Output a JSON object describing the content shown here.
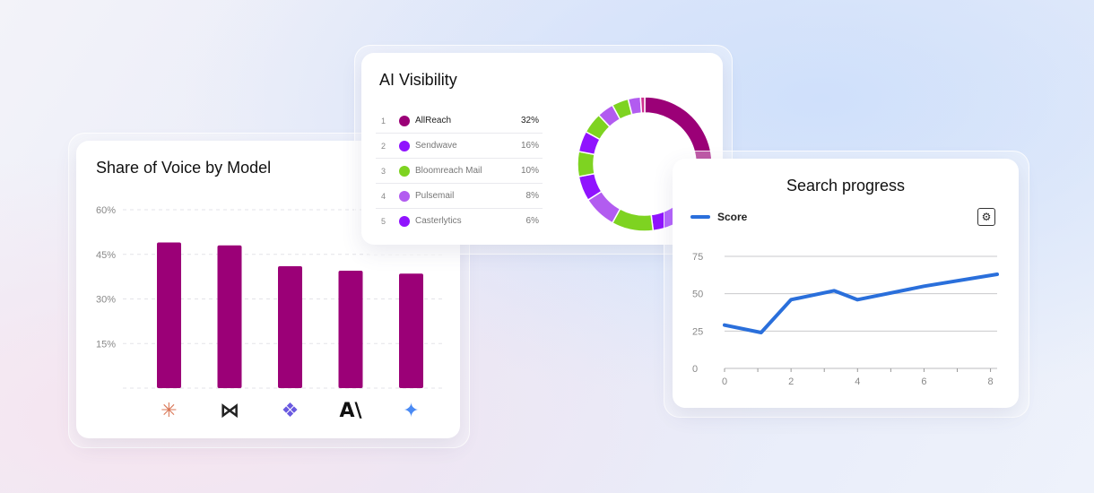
{
  "colors": {
    "bar": "#9b0077",
    "score_line": "#2a6fdb"
  },
  "share_of_voice": {
    "title": "Share of Voice by Model",
    "models": [
      {
        "icon": "claude-icon",
        "glyph": "✳",
        "color": "#d97757"
      },
      {
        "icon": "perplexity-icon",
        "glyph": "⋈",
        "color": "#222222"
      },
      {
        "icon": "copilot-icon",
        "glyph": "❖",
        "color": "#6a5ae0"
      },
      {
        "icon": "anthropic-icon",
        "glyph": "A\\",
        "color": "#111111"
      },
      {
        "icon": "gemini-icon",
        "glyph": "✦",
        "color": "#4a8af4"
      }
    ]
  },
  "ai_visibility": {
    "title": "AI Visibility",
    "items": [
      {
        "rank": "1",
        "name": "AllReach",
        "pct": "32%",
        "color": "#9b0077"
      },
      {
        "rank": "2",
        "name": "Sendwave",
        "pct": "16%",
        "color": "#9013fe"
      },
      {
        "rank": "3",
        "name": "Bloomreach Mail",
        "pct": "10%",
        "color": "#7ed321"
      },
      {
        "rank": "4",
        "name": "Pulsemail",
        "pct": "8%",
        "color": "#b25cf0"
      },
      {
        "rank": "5",
        "name": "Casterlytics",
        "pct": "6%",
        "color": "#9013fe"
      }
    ]
  },
  "search_progress": {
    "title": "Search progress",
    "legend": "Score",
    "settings_icon": "gear-icon"
  },
  "chart_data": [
    {
      "type": "bar",
      "categories": [
        "claude-icon",
        "perplexity-icon",
        "copilot-icon",
        "anthropic-icon",
        "gemini-icon"
      ],
      "values": [
        49,
        48,
        41,
        39.5,
        38.5
      ],
      "title": "Share of Voice by Model",
      "xlabel": "",
      "ylabel": "",
      "yticks": [
        "15%",
        "30%",
        "45%",
        "60%"
      ],
      "ylim": [
        0,
        60
      ],
      "grid": true
    },
    {
      "type": "pie",
      "title": "AI Visibility",
      "slices": [
        {
          "color": "#9b0077",
          "value": 32
        },
        {
          "color": "#9013fe",
          "value": 16
        },
        {
          "color": "#7ed321",
          "value": 10
        },
        {
          "color": "#b25cf0",
          "value": 8
        },
        {
          "color": "#9013fe",
          "value": 6
        },
        {
          "color": "#7ed321",
          "value": 6
        },
        {
          "color": "#9013fe",
          "value": 5
        },
        {
          "color": "#7ed321",
          "value": 5
        },
        {
          "color": "#b25cf0",
          "value": 4
        },
        {
          "color": "#7ed321",
          "value": 4
        },
        {
          "color": "#b25cf0",
          "value": 3
        },
        {
          "color": "#d0308f",
          "value": 1
        }
      ]
    },
    {
      "type": "line",
      "title": "Search progress",
      "series": [
        {
          "name": "Score",
          "x": [
            0,
            1.1,
            2,
            3.3,
            4,
            6,
            8.2
          ],
          "y": [
            29,
            24,
            46,
            52,
            46,
            55,
            63
          ]
        }
      ],
      "xticks": [
        "0",
        "2",
        "4",
        "6",
        "8"
      ],
      "yticks": [
        "0",
        "25",
        "50",
        "75"
      ],
      "xlim": [
        0,
        8.2
      ],
      "ylim": [
        0,
        75
      ],
      "grid": true
    }
  ]
}
